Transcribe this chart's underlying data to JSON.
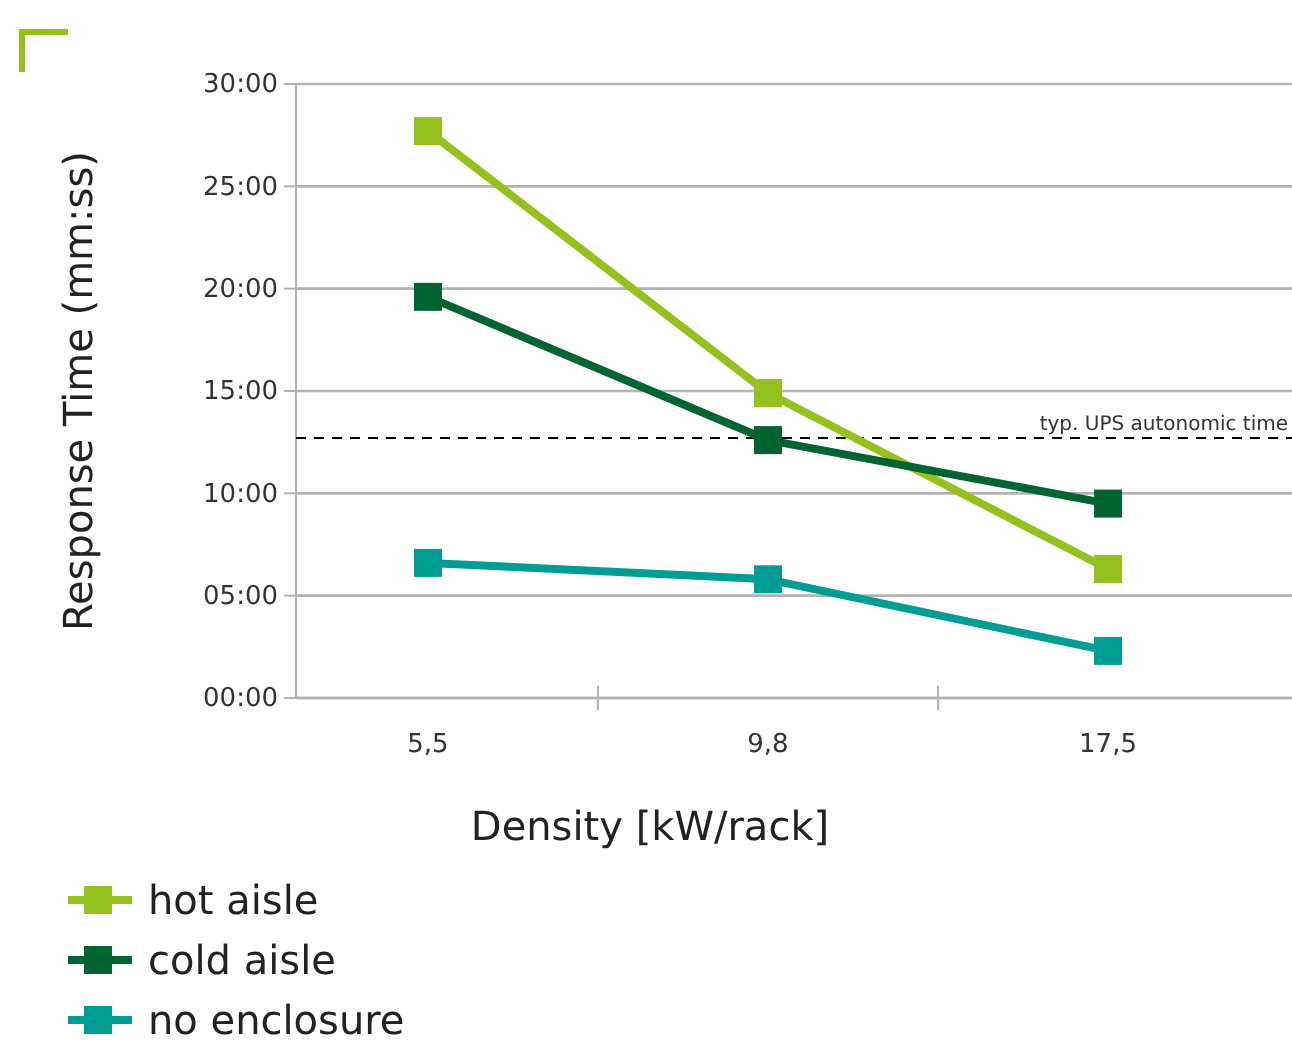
{
  "chart_data": {
    "type": "line",
    "xlabel": "Density [kW/rack]",
    "ylabel": "Response Time (mm:ss)",
    "categories": [
      "5,5",
      "9,8",
      "17,5"
    ],
    "series": [
      {
        "name": "hot aisle",
        "color": "#95c11f",
        "values": [
          27.7,
          14.9,
          6.3
        ]
      },
      {
        "name": "cold aisle",
        "color": "#006430",
        "values": [
          19.6,
          12.6,
          9.5
        ]
      },
      {
        "name": "no enclosure",
        "color": "#009d94",
        "values": [
          6.6,
          5.8,
          2.3
        ]
      }
    ],
    "ylim": [
      0,
      30
    ],
    "yticks": [
      {
        "value": 0,
        "label": "00:00"
      },
      {
        "value": 5,
        "label": "05:00"
      },
      {
        "value": 10,
        "label": "10:00"
      },
      {
        "value": 15,
        "label": "15:00"
      },
      {
        "value": 20,
        "label": "20:00"
      },
      {
        "value": 25,
        "label": "25:00"
      },
      {
        "value": 30,
        "label": "30:00"
      }
    ],
    "ref_lines": [
      {
        "axis": "y",
        "value": 12.7,
        "label": "typ. UPS autonomic time",
        "color": "#000000",
        "line_style": "dashed"
      }
    ],
    "grid": "y",
    "legend": "bottom left",
    "marker": "square",
    "line_style": "solid"
  }
}
